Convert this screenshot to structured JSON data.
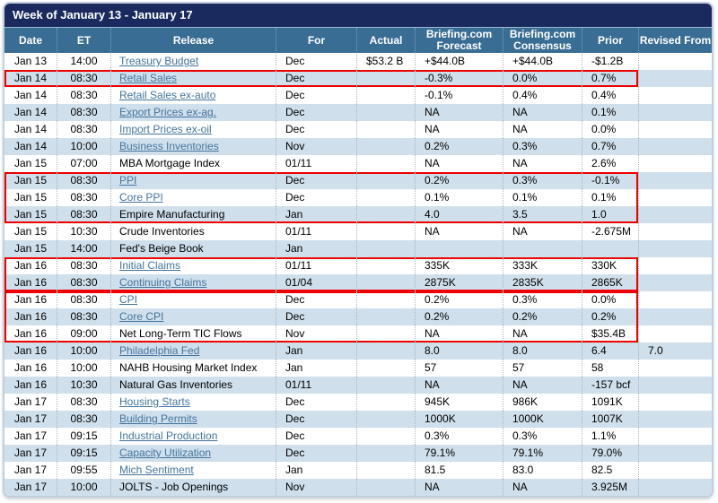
{
  "title": "Week of January 13 - January 17",
  "colors": {
    "title_bar_bg": "#1a2a5e",
    "header_bg": "#3a6d94",
    "row_alt_bg": "#cfdfeb",
    "link_color": "#44749e",
    "highlight_red": "#ee0000",
    "frame_border": "#c3cfdc"
  },
  "columns": [
    {
      "key": "date",
      "label": "Date"
    },
    {
      "key": "et",
      "label": "ET"
    },
    {
      "key": "release",
      "label": "Release"
    },
    {
      "key": "for",
      "label": "For"
    },
    {
      "key": "actual",
      "label": "Actual"
    },
    {
      "key": "forecast",
      "label": "Briefing.com Forecast"
    },
    {
      "key": "consensus",
      "label": "Briefing.com Consensus"
    },
    {
      "key": "prior",
      "label": "Prior"
    },
    {
      "key": "revised",
      "label": "Revised From"
    }
  ],
  "rows": [
    {
      "date": "Jan 13",
      "et": "14:00",
      "release": "Treasury Budget",
      "link": true,
      "for": "Dec",
      "actual": "$53.2 B",
      "forecast": "+$44.0B",
      "consensus": "+$44.0B",
      "prior": "-$1.2B",
      "revised": ""
    },
    {
      "date": "Jan 14",
      "et": "08:30",
      "release": "Retail Sales",
      "link": true,
      "for": "Dec",
      "actual": "",
      "forecast": "-0.3%",
      "consensus": "0.0%",
      "prior": "0.7%",
      "revised": ""
    },
    {
      "date": "Jan 14",
      "et": "08:30",
      "release": "Retail Sales ex-auto",
      "link": true,
      "for": "Dec",
      "actual": "",
      "forecast": "-0.1%",
      "consensus": "0.4%",
      "prior": "0.4%",
      "revised": ""
    },
    {
      "date": "Jan 14",
      "et": "08:30",
      "release": "Export Prices ex-ag.",
      "link": true,
      "for": "Dec",
      "actual": "",
      "forecast": "NA",
      "consensus": "NA",
      "prior": "0.1%",
      "revised": ""
    },
    {
      "date": "Jan 14",
      "et": "08:30",
      "release": "Import Prices ex-oil",
      "link": true,
      "for": "Dec",
      "actual": "",
      "forecast": "NA",
      "consensus": "NA",
      "prior": "0.0%",
      "revised": ""
    },
    {
      "date": "Jan 14",
      "et": "10:00",
      "release": "Business Inventories",
      "link": true,
      "for": "Nov",
      "actual": "",
      "forecast": "0.2%",
      "consensus": "0.3%",
      "prior": "0.7%",
      "revised": ""
    },
    {
      "date": "Jan 15",
      "et": "07:00",
      "release": "MBA Mortgage Index",
      "link": false,
      "for": "01/11",
      "actual": "",
      "forecast": "NA",
      "consensus": "NA",
      "prior": "2.6%",
      "revised": ""
    },
    {
      "date": "Jan 15",
      "et": "08:30",
      "release": "PPI",
      "link": true,
      "for": "Dec",
      "actual": "",
      "forecast": "0.2%",
      "consensus": "0.3%",
      "prior": "-0.1%",
      "revised": ""
    },
    {
      "date": "Jan 15",
      "et": "08:30",
      "release": "Core PPI",
      "link": true,
      "for": "Dec",
      "actual": "",
      "forecast": "0.1%",
      "consensus": "0.1%",
      "prior": "0.1%",
      "revised": ""
    },
    {
      "date": "Jan 15",
      "et": "08:30",
      "release": "Empire Manufacturing",
      "link": false,
      "for": "Jan",
      "actual": "",
      "forecast": "4.0",
      "consensus": "3.5",
      "prior": "1.0",
      "revised": ""
    },
    {
      "date": "Jan 15",
      "et": "10:30",
      "release": "Crude Inventories",
      "link": false,
      "for": "01/11",
      "actual": "",
      "forecast": "NA",
      "consensus": "NA",
      "prior": "-2.675M",
      "revised": ""
    },
    {
      "date": "Jan 15",
      "et": "14:00",
      "release": "Fed's Beige Book",
      "link": false,
      "for": "Jan",
      "actual": "",
      "forecast": "",
      "consensus": "",
      "prior": "",
      "revised": ""
    },
    {
      "date": "Jan 16",
      "et": "08:30",
      "release": "Initial Claims",
      "link": true,
      "for": "01/11",
      "actual": "",
      "forecast": "335K",
      "consensus": "333K",
      "prior": "330K",
      "revised": ""
    },
    {
      "date": "Jan 16",
      "et": "08:30",
      "release": "Continuing Claims",
      "link": true,
      "for": "01/04",
      "actual": "",
      "forecast": "2875K",
      "consensus": "2835K",
      "prior": "2865K",
      "revised": ""
    },
    {
      "date": "Jan 16",
      "et": "08:30",
      "release": "CPI",
      "link": true,
      "for": "Dec",
      "actual": "",
      "forecast": "0.2%",
      "consensus": "0.3%",
      "prior": "0.0%",
      "revised": ""
    },
    {
      "date": "Jan 16",
      "et": "08:30",
      "release": "Core CPI",
      "link": true,
      "for": "Dec",
      "actual": "",
      "forecast": "0.2%",
      "consensus": "0.2%",
      "prior": "0.2%",
      "revised": ""
    },
    {
      "date": "Jan 16",
      "et": "09:00",
      "release": "Net Long-Term TIC Flows",
      "link": false,
      "for": "Nov",
      "actual": "",
      "forecast": "NA",
      "consensus": "NA",
      "prior": "$35.4B",
      "revised": ""
    },
    {
      "date": "Jan 16",
      "et": "10:00",
      "release": "Philadelphia Fed",
      "link": true,
      "for": "Jan",
      "actual": "",
      "forecast": "8.0",
      "consensus": "8.0",
      "prior": "6.4",
      "revised": "7.0"
    },
    {
      "date": "Jan 16",
      "et": "10:00",
      "release": "NAHB Housing Market Index",
      "link": false,
      "for": "Jan",
      "actual": "",
      "forecast": "57",
      "consensus": "57",
      "prior": "58",
      "revised": ""
    },
    {
      "date": "Jan 16",
      "et": "10:30",
      "release": "Natural Gas Inventories",
      "link": false,
      "for": "01/11",
      "actual": "",
      "forecast": "NA",
      "consensus": "NA",
      "prior": "-157 bcf",
      "revised": ""
    },
    {
      "date": "Jan 17",
      "et": "08:30",
      "release": "Housing Starts",
      "link": true,
      "for": "Dec",
      "actual": "",
      "forecast": "945K",
      "consensus": "986K",
      "prior": "1091K",
      "revised": ""
    },
    {
      "date": "Jan 17",
      "et": "08:30",
      "release": "Building Permits",
      "link": true,
      "for": "Dec",
      "actual": "",
      "forecast": "1000K",
      "consensus": "1000K",
      "prior": "1007K",
      "revised": ""
    },
    {
      "date": "Jan 17",
      "et": "09:15",
      "release": "Industrial Production",
      "link": true,
      "for": "Dec",
      "actual": "",
      "forecast": "0.3%",
      "consensus": "0.3%",
      "prior": "1.1%",
      "revised": ""
    },
    {
      "date": "Jan 17",
      "et": "09:15",
      "release": "Capacity Utilization",
      "link": true,
      "for": "Dec",
      "actual": "",
      "forecast": "79.1%",
      "consensus": "79.1%",
      "prior": "79.0%",
      "revised": ""
    },
    {
      "date": "Jan 17",
      "et": "09:55",
      "release": "Mich Sentiment",
      "link": true,
      "for": "Jan",
      "actual": "",
      "forecast": "81.5",
      "consensus": "83.0",
      "prior": "82.5",
      "revised": ""
    },
    {
      "date": "Jan 17",
      "et": "10:00",
      "release": "JOLTS - Job Openings",
      "link": false,
      "for": "Nov",
      "actual": "",
      "forecast": "NA",
      "consensus": "NA",
      "prior": "3.925M",
      "revised": ""
    }
  ],
  "red_boxes": [
    {
      "start": 1,
      "end": 1
    },
    {
      "start": 7,
      "end": 9
    },
    {
      "start": 12,
      "end": 13
    },
    {
      "start": 14,
      "end": 16
    }
  ]
}
